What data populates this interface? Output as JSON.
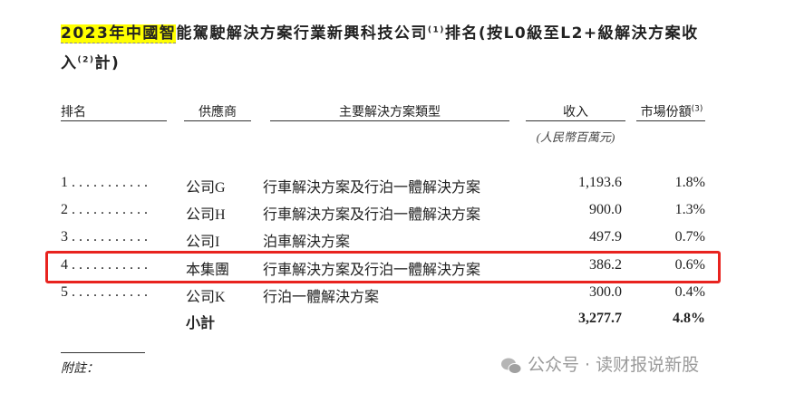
{
  "title": {
    "highlight": "2023年中國智",
    "line1_rest": "能駕駛解決方案行業新興科技公司",
    "sup1": "(1)",
    "line1_tail": "排名(按L0級至L2+級解決方案收",
    "line2_head": "入",
    "sup2": "(2)",
    "line2_tail": "計)"
  },
  "headers": {
    "rank": "排名",
    "supplier": "供應商",
    "type": "主要解決方案類型",
    "revenue": "收入",
    "share": "市場份額",
    "share_sup": "(3)",
    "revenue_unit": "(人民幣百萬元)"
  },
  "rows": [
    {
      "rank": "1 . . . . . . . . . . .",
      "supplier": "公司G",
      "type": "行車解決方案及行泊一體解決方案",
      "revenue": "1,193.6",
      "share": "1.8%"
    },
    {
      "rank": "2 . . . . . . . . . . .",
      "supplier": "公司H",
      "type": "行車解決方案及行泊一體解決方案",
      "revenue": "900.0",
      "share": "1.3%"
    },
    {
      "rank": "3 . . . . . . . . . . .",
      "supplier": "公司I",
      "type": "泊車解決方案",
      "revenue": "497.9",
      "share": "0.7%"
    },
    {
      "rank": "4 . . . . . . . . . . .",
      "supplier": "本集團",
      "type": "行車解決方案及行泊一體解決方案",
      "revenue": "386.2",
      "share": "0.6%"
    },
    {
      "rank": "5 . . . . . . . . . . .",
      "supplier": "公司K",
      "type": "行泊一體解決方案",
      "revenue": "300.0",
      "share": "0.4%"
    }
  ],
  "subtotal": {
    "label": "小計",
    "revenue": "3,277.7",
    "share": "4.8%"
  },
  "footnote": "附註：",
  "watermark": {
    "icon": "wechat-icon",
    "text": "公众号 · 读财报说新股"
  },
  "colors": {
    "highlight": "#ffff00",
    "annotation_box": "#e8231f"
  }
}
